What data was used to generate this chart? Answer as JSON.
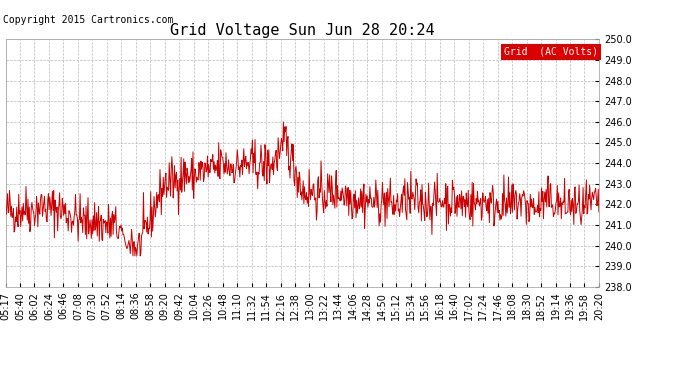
{
  "title": "Grid Voltage Sun Jun 28 20:24",
  "copyright": "Copyright 2015 Cartronics.com",
  "legend_label": "Grid  (AC Volts)",
  "legend_bg": "#dd0000",
  "legend_fg": "#ffffff",
  "line_color": "#cc0000",
  "bg_color": "#ffffff",
  "grid_color": "#bbbbbb",
  "ylim": [
    238.0,
    250.0
  ],
  "yticks": [
    238.0,
    239.0,
    240.0,
    241.0,
    242.0,
    243.0,
    244.0,
    245.0,
    246.0,
    247.0,
    248.0,
    249.0,
    250.0
  ],
  "xtick_labels": [
    "05:17",
    "05:40",
    "06:02",
    "06:24",
    "06:46",
    "07:08",
    "07:30",
    "07:52",
    "08:14",
    "08:36",
    "08:58",
    "09:20",
    "09:42",
    "10:04",
    "10:26",
    "10:48",
    "11:10",
    "11:32",
    "11:54",
    "12:16",
    "12:38",
    "13:00",
    "13:22",
    "13:44",
    "14:06",
    "14:28",
    "14:50",
    "15:12",
    "15:34",
    "15:56",
    "16:18",
    "16:40",
    "17:02",
    "17:24",
    "17:46",
    "18:08",
    "18:30",
    "18:52",
    "19:14",
    "19:36",
    "19:58",
    "20:20"
  ],
  "num_points": 900,
  "seed": 42,
  "title_fontsize": 11,
  "copyright_fontsize": 7,
  "tick_fontsize": 7,
  "legend_fontsize": 7
}
